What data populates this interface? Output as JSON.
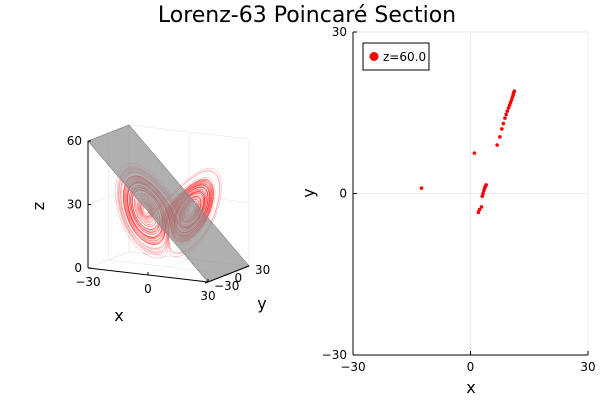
{
  "title": "Lorenz-63 Poincaré Section",
  "colors": {
    "trajectory": "#ff0000",
    "plane": "#808080",
    "section_points": "#ff0000",
    "grid": "#e6e6e6",
    "axis": "#000000",
    "background": "#ffffff"
  },
  "chart_data": [
    {
      "type": "line",
      "subtype": "3d",
      "xlabel": "x",
      "ylabel": "y",
      "zlabel": "z",
      "xlim": [
        -30,
        30
      ],
      "ylim": [
        -30,
        30
      ],
      "zlim": [
        0,
        60
      ],
      "x_ticks": [
        "−30",
        "0",
        "30"
      ],
      "y_ticks": [
        "−30",
        "0",
        "30"
      ],
      "z_ticks": [
        "0",
        "30",
        "60"
      ],
      "series": [
        {
          "kind": "trajectory",
          "description": "Lorenz attractor (sigma=10, rho=28, beta=8/3)",
          "color": "#ff0000"
        },
        {
          "kind": "surface",
          "description": "section plane",
          "color": "#808080"
        }
      ],
      "grid": true
    },
    {
      "type": "scatter",
      "xlabel": "x",
      "ylabel": "y",
      "xlim": [
        -30,
        30
      ],
      "ylim": [
        -30,
        30
      ],
      "x_ticks": [
        "−30",
        "0",
        "30"
      ],
      "y_ticks": [
        "−30",
        "0",
        "30"
      ],
      "grid": true,
      "legend_position": "top-left",
      "series": [
        {
          "name": "z=60.0",
          "color": "#ff0000",
          "x": [
            -12.5,
            1.0,
            2.0,
            2.3,
            2.8,
            3.0,
            3.2,
            3.4,
            3.6,
            3.8,
            4.0,
            6.8,
            7.5,
            8.0,
            8.4,
            8.8,
            9.1,
            9.4,
            9.7,
            10.0,
            10.2,
            10.5,
            10.7,
            10.9,
            11.0,
            11.2
          ],
          "y": [
            1.0,
            7.5,
            -3.5,
            -3.0,
            -2.5,
            -0.5,
            0.0,
            0.5,
            1.0,
            1.3,
            1.6,
            9.0,
            10.5,
            12.0,
            13.0,
            14.0,
            14.7,
            15.3,
            15.9,
            16.4,
            16.9,
            17.4,
            17.9,
            18.3,
            18.7,
            19.0
          ]
        }
      ]
    }
  ]
}
